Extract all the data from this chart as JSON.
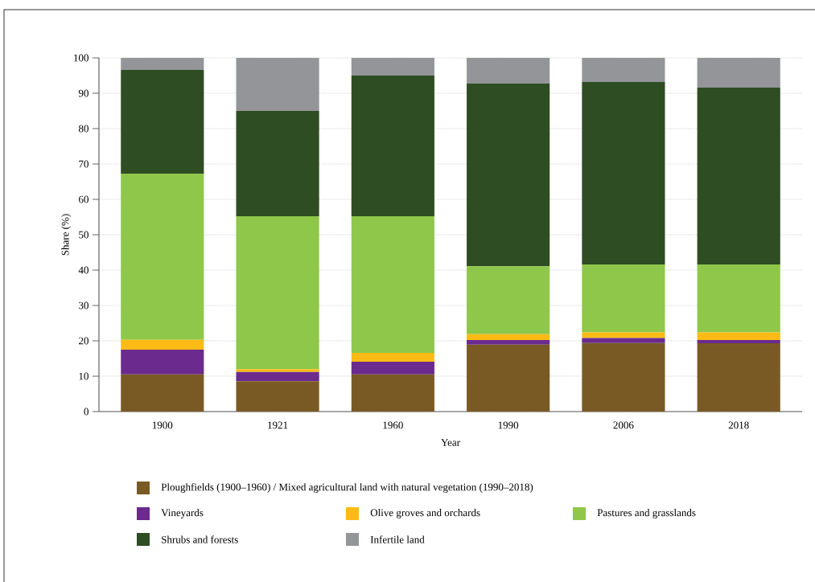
{
  "chart_data": {
    "type": "bar",
    "stacked": true,
    "xlabel": "Year",
    "ylabel": "Share (%)",
    "categories": [
      "1900",
      "1921",
      "1960",
      "1990",
      "2006",
      "2018"
    ],
    "series": [
      {
        "name": "Ploughfields (1900–1960) / Mixed agricultural land with natural vegetation (1990–2018)",
        "color": "#7a5a24",
        "values": [
          10.5,
          8.6,
          10.5,
          18.9,
          19.4,
          19.3
        ]
      },
      {
        "name": "Vineyards",
        "color": "#6a2a8e",
        "values": [
          7.0,
          2.6,
          3.6,
          1.3,
          1.4,
          0.9
        ]
      },
      {
        "name": "Olive groves and orchards",
        "color": "#fbbb14",
        "values": [
          2.8,
          0.8,
          2.5,
          1.7,
          1.6,
          2.2
        ]
      },
      {
        "name": "Pastures and grasslands",
        "color": "#8fc74a",
        "values": [
          47.0,
          43.2,
          38.6,
          19.2,
          19.2,
          19.2
        ]
      },
      {
        "name": "Shrubs and forests",
        "color": "#2e4d23",
        "values": [
          29.3,
          29.8,
          39.8,
          51.6,
          51.6,
          50.0
        ]
      },
      {
        "name": "Infertile land",
        "color": "#939598",
        "values": [
          3.4,
          15.0,
          5.0,
          7.3,
          6.8,
          8.4
        ]
      }
    ],
    "ylim": [
      0,
      100
    ],
    "yticks": [
      0,
      10,
      20,
      30,
      40,
      50,
      60,
      70,
      80,
      90,
      100
    ],
    "grid": "y",
    "legend": "bottom"
  }
}
